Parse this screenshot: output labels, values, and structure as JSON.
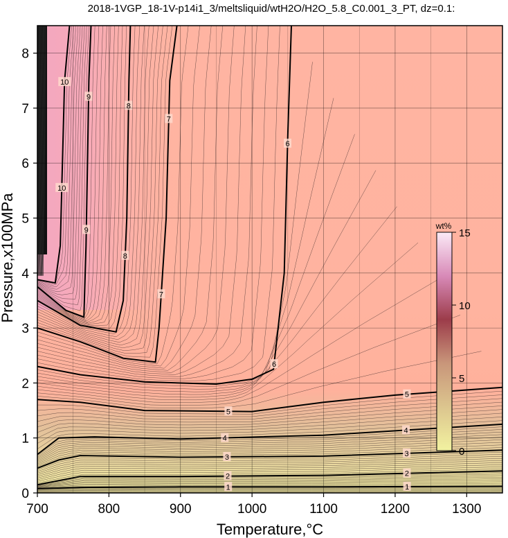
{
  "chart_data": {
    "type": "heatmap",
    "title": "2018-1VGP_18-1V-p14i1_3/meltsliquid/wtH2O/H2O_5.8_C0.001_3_PT, dz=0.1:",
    "xlabel": "Temperature,°C",
    "ylabel": "Pressure,x100MPa",
    "xlim": [
      700,
      1350
    ],
    "ylim": [
      0,
      8.5
    ],
    "x_ticks": [
      700,
      800,
      900,
      1000,
      1100,
      1200,
      1300
    ],
    "y_ticks": [
      0,
      1,
      2,
      3,
      4,
      5,
      6,
      7,
      8
    ],
    "grid": true,
    "colorbar": {
      "title": "wt%",
      "range": [
        0,
        15
      ],
      "ticks": [
        0,
        5,
        10,
        15
      ],
      "colors": [
        "#f2f2a0",
        "#d9b88a",
        "#c88272",
        "#9c3c4a",
        "#e8b4d8",
        "#fbeaf6"
      ]
    },
    "contours": [
      {
        "label": "1",
        "points": [
          [
            700,
            0.08
          ],
          [
            760,
            0.1
          ],
          [
            900,
            0.11
          ],
          [
            1100,
            0.11
          ],
          [
            1350,
            0.12
          ]
        ]
      },
      {
        "label": "2",
        "points": [
          [
            700,
            0.15
          ],
          [
            760,
            0.3
          ],
          [
            900,
            0.3
          ],
          [
            1100,
            0.32
          ],
          [
            1350,
            0.4
          ]
        ]
      },
      {
        "label": "3",
        "points": [
          [
            700,
            0.45
          ],
          [
            730,
            0.6
          ],
          [
            760,
            0.68
          ],
          [
            900,
            0.65
          ],
          [
            1100,
            0.67
          ],
          [
            1350,
            0.78
          ]
        ]
      },
      {
        "label": "4",
        "points": [
          [
            700,
            0.7
          ],
          [
            730,
            1.0
          ],
          [
            780,
            1.02
          ],
          [
            900,
            0.98
          ],
          [
            1100,
            1.05
          ],
          [
            1350,
            1.25
          ]
        ]
      },
      {
        "label": "5",
        "points": [
          [
            700,
            1.7
          ],
          [
            760,
            1.65
          ],
          [
            850,
            1.5
          ],
          [
            1000,
            1.48
          ],
          [
            1100,
            1.65
          ],
          [
            1200,
            1.78
          ],
          [
            1350,
            1.92
          ]
        ]
      },
      {
        "label": "6",
        "points": [
          [
            700,
            2.3
          ],
          [
            760,
            2.15
          ],
          [
            850,
            2.02
          ],
          [
            950,
            1.98
          ],
          [
            1000,
            2.07
          ],
          [
            1030,
            2.25
          ],
          [
            1045,
            4.0
          ],
          [
            1050,
            6.5
          ],
          [
            1055,
            8.5
          ]
        ]
      },
      {
        "label": "7",
        "points": [
          [
            700,
            3.0
          ],
          [
            760,
            2.75
          ],
          [
            820,
            2.45
          ],
          [
            865,
            2.38
          ],
          [
            870,
            3.0
          ],
          [
            880,
            5.0
          ],
          [
            885,
            7.5
          ],
          [
            895,
            8.5
          ]
        ]
      },
      {
        "label": "8",
        "points": [
          [
            700,
            3.5
          ],
          [
            760,
            3.05
          ],
          [
            810,
            2.93
          ],
          [
            820,
            3.5
          ],
          [
            825,
            5.0
          ],
          [
            828,
            7.5
          ],
          [
            830,
            8.5
          ]
        ]
      },
      {
        "label": "9",
        "points": [
          [
            700,
            3.75
          ],
          [
            740,
            3.32
          ],
          [
            765,
            3.2
          ],
          [
            768,
            4.5
          ],
          [
            770,
            6.0
          ],
          [
            772,
            7.5
          ],
          [
            775,
            8.5
          ]
        ]
      },
      {
        "label": "10",
        "points": [
          [
            700,
            3.88
          ],
          [
            725,
            3.82
          ],
          [
            732,
            4.5
          ],
          [
            735,
            6.0
          ],
          [
            738,
            7.5
          ],
          [
            745,
            8.5
          ]
        ]
      }
    ]
  }
}
